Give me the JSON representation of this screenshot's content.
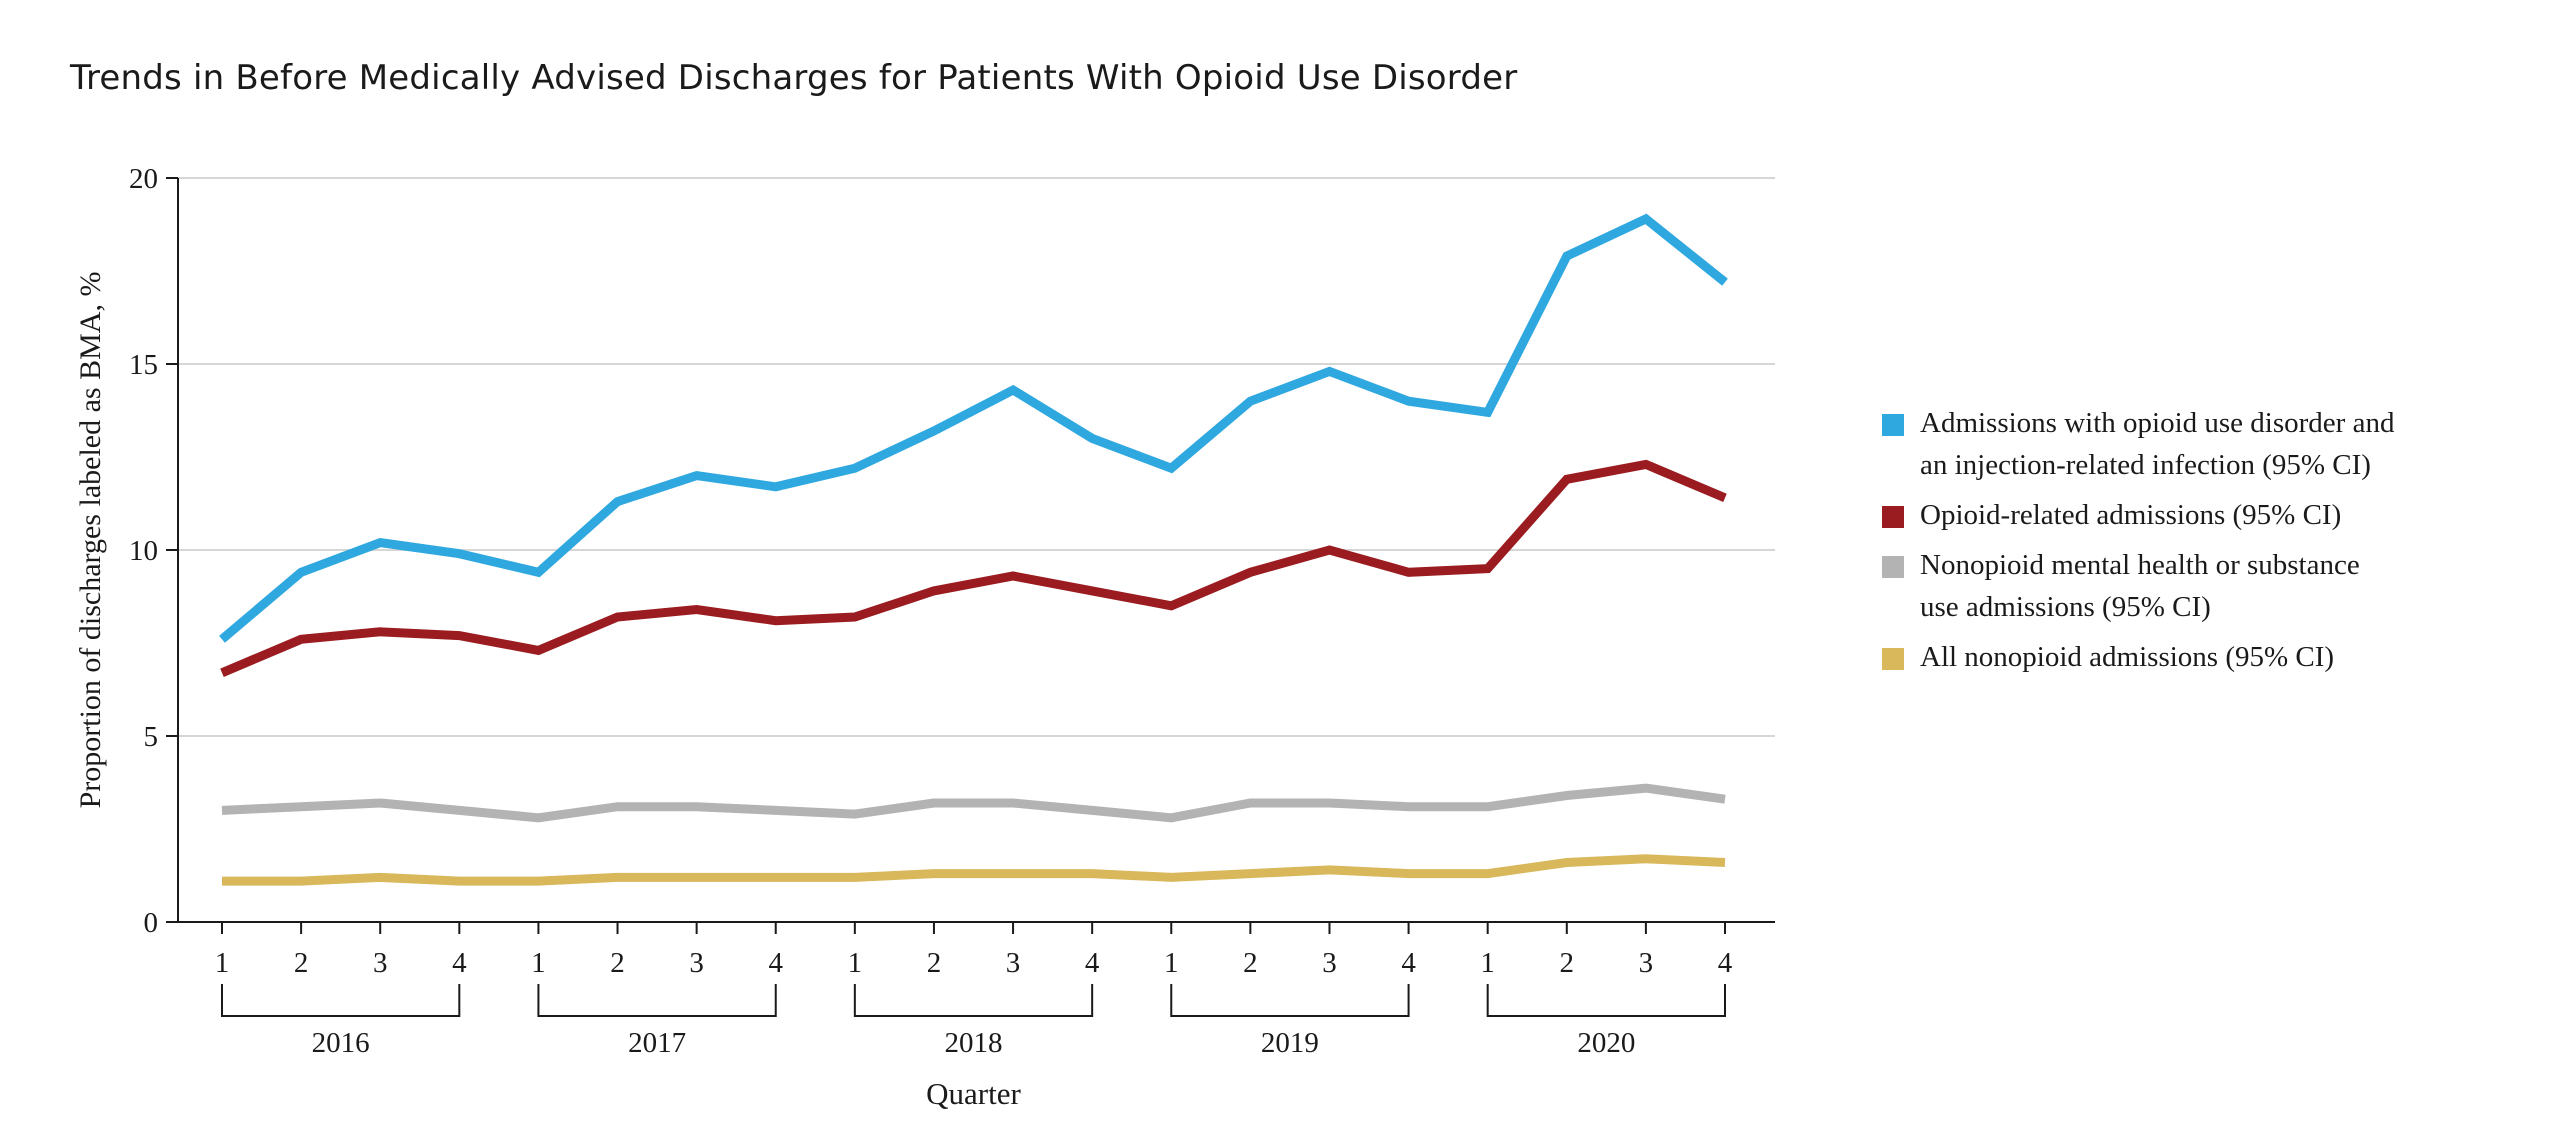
{
  "chart_data": {
    "type": "line",
    "title": "Trends in Before Medically Advised Discharges for Patients With Opioid Use Disorder",
    "xlabel": "Quarter",
    "ylabel": "Proportion of discharges labeled as BMA, %",
    "ylim": [
      0,
      20
    ],
    "yticks": [
      0,
      5,
      10,
      15,
      20
    ],
    "grid": "horizontal",
    "legend_position": "right",
    "quarters": [
      "1",
      "2",
      "3",
      "4",
      "1",
      "2",
      "3",
      "4",
      "1",
      "2",
      "3",
      "4",
      "1",
      "2",
      "3",
      "4",
      "1",
      "2",
      "3",
      "4"
    ],
    "years": [
      "2016",
      "2017",
      "2018",
      "2019",
      "2020"
    ],
    "series": [
      {
        "name": "Admissions with opioid use disorder and an injection-related infection (95% CI)",
        "name_lines": [
          "Admissions with opioid use disorder and",
          "an injection-related infection (95% CI)"
        ],
        "color": "#2fa8e0",
        "values": [
          7.6,
          9.4,
          10.2,
          9.9,
          9.4,
          11.3,
          12.0,
          11.7,
          12.2,
          13.2,
          14.3,
          13.0,
          12.2,
          14.0,
          14.8,
          14.0,
          13.7,
          17.9,
          18.9,
          17.2
        ]
      },
      {
        "name": "Opioid-related admissions (95% CI)",
        "name_lines": [
          "Opioid-related admissions (95% CI)"
        ],
        "color": "#9b1c20",
        "values": [
          6.7,
          7.6,
          7.8,
          7.7,
          7.3,
          8.2,
          8.4,
          8.1,
          8.2,
          8.9,
          9.3,
          8.9,
          8.5,
          9.4,
          10.0,
          9.4,
          9.5,
          11.9,
          12.3,
          11.4
        ]
      },
      {
        "name": "Nonopioid mental health or substance use admissions (95% CI)",
        "name_lines": [
          "Nonopioid mental health or substance",
          "use admissions (95% CI)"
        ],
        "color": "#b3b3b3",
        "values": [
          3.0,
          3.1,
          3.2,
          3.0,
          2.8,
          3.1,
          3.1,
          3.0,
          2.9,
          3.2,
          3.2,
          3.0,
          2.8,
          3.2,
          3.2,
          3.1,
          3.1,
          3.4,
          3.6,
          3.3
        ]
      },
      {
        "name": "All nonopioid admissions (95% CI)",
        "name_lines": [
          "All nonopioid admissions (95% CI)"
        ],
        "color": "#d9b85c",
        "values": [
          1.1,
          1.1,
          1.2,
          1.1,
          1.1,
          1.2,
          1.2,
          1.2,
          1.2,
          1.3,
          1.3,
          1.3,
          1.2,
          1.3,
          1.4,
          1.3,
          1.3,
          1.6,
          1.7,
          1.6
        ]
      }
    ]
  }
}
